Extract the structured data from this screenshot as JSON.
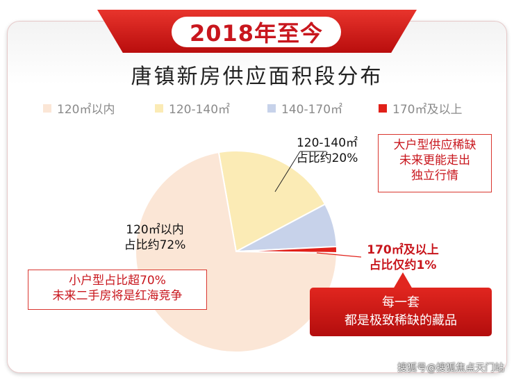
{
  "header": {
    "badge_title": "2018年至今"
  },
  "chart_data": {
    "type": "pie",
    "title": "唐镇新房供应面积段分布",
    "categories": [
      "120㎡以内",
      "120-140㎡",
      "140-170㎡",
      "170㎡及以上"
    ],
    "values": [
      72,
      20,
      7,
      1
    ],
    "unit": "%",
    "colors": [
      "#fbe6d6",
      "#fbebb5",
      "#c7d2ea",
      "#e12019"
    ],
    "legend_position": "top",
    "slice_labels": {
      "s0_line1": "120㎡以内",
      "s0_line2": "占比约72%",
      "s1_line1": "120-140㎡",
      "s1_line2": "占比约20%",
      "s3_line1": "170㎡及以上",
      "s3_line2": "占比仅约1%"
    },
    "annotations": {
      "small_line1": "小户型占比超70%",
      "small_line2": "未来二手房将是红海竞争",
      "large_line1": "大户型供应稀缺",
      "large_line2": "未来更能走出",
      "large_line3": "独立行情",
      "banner_line1": "每一套",
      "banner_line2": "都是极致稀缺的藏品"
    }
  },
  "watermark": "搜狐号@搜狐焦点天门站"
}
